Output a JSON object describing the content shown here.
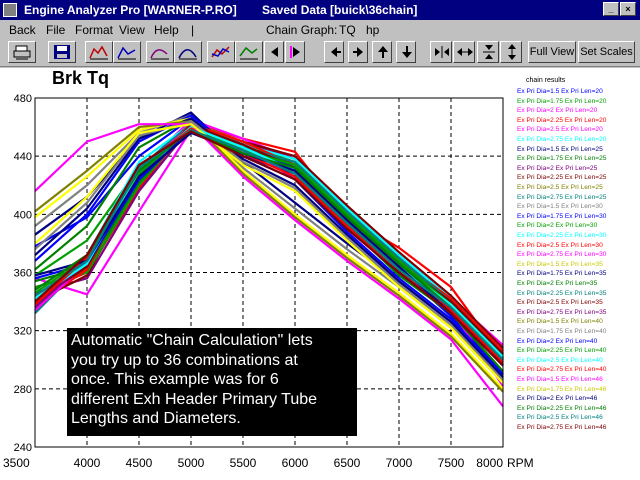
{
  "window": {
    "app_title": "Engine Analyzer Pro [WARNER-P.RO]",
    "saved_title": "Saved Data [buick\\36chain]",
    "min_label": "_",
    "close_label": "×"
  },
  "menu": {
    "items": [
      {
        "label": "Back"
      },
      {
        "label": "File"
      },
      {
        "label": "Format"
      },
      {
        "label": "View"
      },
      {
        "label": "Help"
      },
      {
        "label": "|"
      }
    ],
    "chain_graph_label": "Chain Graph:",
    "tq_label": "TQ",
    "hp_label": "hp"
  },
  "toolbar": {
    "full_view_label": "Full View",
    "set_scales_label": "Set Scales",
    "icons": [
      "print-icon",
      "save-icon",
      "graph-a-icon",
      "graph-b-icon",
      "graph-c-icon",
      "graph-d-icon",
      "graph-e-icon",
      "graph-f-icon",
      "scroll-left-icon",
      "scroll-right-icon",
      "move-left-icon",
      "move-right-icon",
      "move-up-icon",
      "move-down-icon",
      "zoom-in-horizontal-icon",
      "zoom-out-horizontal-icon",
      "zoom-in-vertical-icon",
      "zoom-out-vertical-icon"
    ]
  },
  "callout": {
    "lines": [
      "Automatic \"Chain Calculation\" lets",
      "you try up to 36 combinations at",
      "once.  This example was for 6",
      "different Exh Header Primary Tube",
      "Lengths and Diameters."
    ]
  },
  "chart_data": {
    "type": "line",
    "title": "Brk Tq",
    "xlabel": "RPM",
    "ylabel": "",
    "x": [
      3500,
      4000,
      4500,
      5000,
      5500,
      6000,
      6500,
      7000,
      7500,
      8000
    ],
    "xlim": [
      3500,
      8000
    ],
    "ylim": [
      240,
      480
    ],
    "xticks": [
      3500,
      4000,
      4500,
      5000,
      5500,
      6000,
      6500,
      7000,
      7500,
      8000
    ],
    "yticks": [
      240,
      280,
      320,
      360,
      400,
      440,
      480
    ],
    "grid": true,
    "legend_title": "chain results",
    "legend_position": "right",
    "series": [
      {
        "name": "Ex Pri Dia=1.5   Ex Pri Len=20",
        "color": "#0000ff",
        "values": [
          378,
          398,
          440,
          466,
          440,
          428,
          398,
          362,
          330,
          290
        ]
      },
      {
        "name": "Ex Pri Dia=1.75   Ex Pri Len=20",
        "color": "#00a000",
        "values": [
          358,
          382,
          432,
          462,
          446,
          432,
          396,
          370,
          338,
          296
        ]
      },
      {
        "name": "Ex Pri Dia=2   Ex Pri Len=20",
        "color": "#ff00ff",
        "values": [
          356,
          345,
          402,
          458,
          448,
          424,
          390,
          360,
          334,
          282
        ]
      },
      {
        "name": "Ex Pri Dia=2.25   Ex Pri Len=20",
        "color": "#ff0000",
        "values": [
          345,
          360,
          418,
          463,
          452,
          443,
          398,
          377,
          350,
          301
        ]
      },
      {
        "name": "Ex Pri Dia=2.5   Ex Pri Len=20",
        "color": "#ff00ff",
        "values": [
          334,
          368,
          430,
          465,
          452,
          438,
          402,
          372,
          342,
          310
        ]
      },
      {
        "name": "Ex Pri Dia=2.75   Ex Pri Len=20",
        "color": "#00ffff",
        "values": [
          334,
          372,
          436,
          462,
          448,
          432,
          394,
          366,
          334,
          296
        ]
      },
      {
        "name": "Ex Pri Dia=1.5   Ex Pri Len=25",
        "color": "#000080",
        "values": [
          386,
          412,
          452,
          470,
          436,
          408,
          380,
          354,
          326,
          288
        ]
      },
      {
        "name": "Ex Pri Dia=1.75   Ex Pri Len=25",
        "color": "#008000",
        "values": [
          362,
          392,
          446,
          466,
          444,
          428,
          392,
          358,
          332,
          292
        ]
      },
      {
        "name": "Ex Pri Dia=2   Ex Pri Len=25",
        "color": "#800080",
        "values": [
          346,
          356,
          416,
          460,
          450,
          438,
          404,
          372,
          338,
          304
        ]
      },
      {
        "name": "Ex Pri Dia=2.25   Ex Pri Len=25",
        "color": "#800000",
        "values": [
          340,
          358,
          424,
          462,
          450,
          440,
          406,
          374,
          344,
          308
        ]
      },
      {
        "name": "Ex Pri Dia=2.5   Ex Pri Len=25",
        "color": "#808000",
        "values": [
          336,
          364,
          428,
          463,
          450,
          434,
          400,
          368,
          340,
          304
        ]
      },
      {
        "name": "Ex Pri Dia=2.75   Ex Pri Len=25",
        "color": "#008080",
        "values": [
          332,
          368,
          432,
          462,
          446,
          430,
          396,
          364,
          336,
          300
        ]
      },
      {
        "name": "Ex Pri Dia=1.5   Ex Pri Len=30",
        "color": "#808080",
        "values": [
          392,
          420,
          456,
          468,
          432,
          404,
          376,
          350,
          322,
          284
        ]
      },
      {
        "name": "Ex Pri Dia=1.75   Ex Pri Len=30",
        "color": "#0000ff",
        "values": [
          368,
          400,
          450,
          468,
          440,
          424,
          388,
          356,
          328,
          290
        ]
      },
      {
        "name": "Ex Pri Dia=2   Ex Pri Len=30",
        "color": "#00a000",
        "values": [
          350,
          360,
          420,
          462,
          448,
          436,
          402,
          370,
          336,
          302
        ]
      },
      {
        "name": "Ex Pri Dia=2.25   Ex Pri Len=30",
        "color": "#00ffff",
        "values": [
          342,
          366,
          424,
          462,
          448,
          438,
          404,
          372,
          342,
          306
        ]
      },
      {
        "name": "Ex Pri Dia=2.5   Ex Pri Len=30",
        "color": "#ff0000",
        "values": [
          338,
          362,
          426,
          462,
          450,
          434,
          400,
          368,
          342,
          306
        ]
      },
      {
        "name": "Ex Pri Dia=2.75   Ex Pri Len=30",
        "color": "#ff00ff",
        "values": [
          334,
          366,
          430,
          461,
          446,
          430,
          396,
          366,
          338,
          302
        ]
      },
      {
        "name": "Ex Pri Dia=1.5   Ex Pri Len=35",
        "color": "#ffff00",
        "values": [
          398,
          426,
          458,
          466,
          430,
          400,
          372,
          346,
          318,
          280
        ]
      },
      {
        "name": "Ex Pri Dia=1.75   Ex Pri Len=35",
        "color": "#000080",
        "values": [
          372,
          404,
          452,
          466,
          438,
          420,
          386,
          354,
          326,
          288
        ]
      },
      {
        "name": "Ex Pri Dia=2   Ex Pri Len=35",
        "color": "#008000",
        "values": [
          354,
          364,
          422,
          460,
          446,
          434,
          400,
          368,
          336,
          300
        ]
      },
      {
        "name": "Ex Pri Dia=2.25   Ex Pri Len=35",
        "color": "#008080",
        "values": [
          344,
          368,
          426,
          461,
          446,
          436,
          402,
          370,
          340,
          304
        ]
      },
      {
        "name": "Ex Pri Dia=2.5   Ex Pri Len=35",
        "color": "#800000",
        "values": [
          340,
          364,
          428,
          461,
          448,
          432,
          398,
          366,
          340,
          304
        ]
      },
      {
        "name": "Ex Pri Dia=2.75   Ex Pri Len=35",
        "color": "#800080",
        "values": [
          336,
          368,
          430,
          460,
          444,
          428,
          394,
          364,
          336,
          300
        ]
      },
      {
        "name": "Ex Pri Dia=1.5   Ex Pri Len=40",
        "color": "#808000",
        "values": [
          402,
          430,
          460,
          464,
          428,
          398,
          370,
          344,
          316,
          278
        ]
      },
      {
        "name": "Ex Pri Dia=1.75   Ex Pri Len=40",
        "color": "#808080",
        "values": [
          376,
          408,
          454,
          464,
          436,
          418,
          384,
          352,
          324,
          286
        ]
      },
      {
        "name": "Ex Pri Dia=2   Ex Pri Len=40",
        "color": "#0000ff",
        "values": [
          356,
          366,
          424,
          458,
          444,
          432,
          398,
          366,
          334,
          298
        ]
      },
      {
        "name": "Ex Pri Dia=2.25   Ex Pri Len=40",
        "color": "#00a000",
        "values": [
          346,
          370,
          428,
          460,
          444,
          434,
          400,
          368,
          338,
          302
        ]
      },
      {
        "name": "Ex Pri Dia=2.5   Ex Pri Len=40",
        "color": "#00ffff",
        "values": [
          342,
          366,
          430,
          460,
          446,
          430,
          396,
          364,
          338,
          302
        ]
      },
      {
        "name": "Ex Pri Dia=2.75   Ex Pri Len=40",
        "color": "#ff0000",
        "values": [
          338,
          370,
          432,
          459,
          442,
          426,
          392,
          362,
          334,
          298
        ]
      },
      {
        "name": "Ex Pri Dia=1.5   Ex Pri Len=46",
        "color": "#ff00ff",
        "values": [
          416,
          450,
          462,
          462,
          426,
          396,
          368,
          342,
          314,
          268
        ]
      },
      {
        "name": "Ex Pri Dia=1.75   Ex Pri Len=46",
        "color": "#ffff00",
        "values": [
          380,
          412,
          456,
          462,
          434,
          416,
          382,
          350,
          322,
          284
        ]
      },
      {
        "name": "Ex Pri Dia=2   Ex Pri Len=46",
        "color": "#000080",
        "values": [
          358,
          368,
          426,
          456,
          442,
          430,
          396,
          364,
          332,
          296
        ]
      },
      {
        "name": "Ex Pri Dia=2.25   Ex Pri Len=46",
        "color": "#008000",
        "values": [
          348,
          372,
          430,
          458,
          442,
          432,
          398,
          366,
          336,
          300
        ]
      },
      {
        "name": "Ex Pri Dia=2.5   Ex Pri Len=46",
        "color": "#008080",
        "values": [
          344,
          368,
          432,
          458,
          444,
          428,
          394,
          362,
          336,
          300
        ]
      },
      {
        "name": "Ex Pri Dia=2.75   Ex Pri Len=46",
        "color": "#800000",
        "values": [
          340,
          372,
          434,
          457,
          440,
          424,
          390,
          360,
          332,
          296
        ]
      }
    ]
  }
}
